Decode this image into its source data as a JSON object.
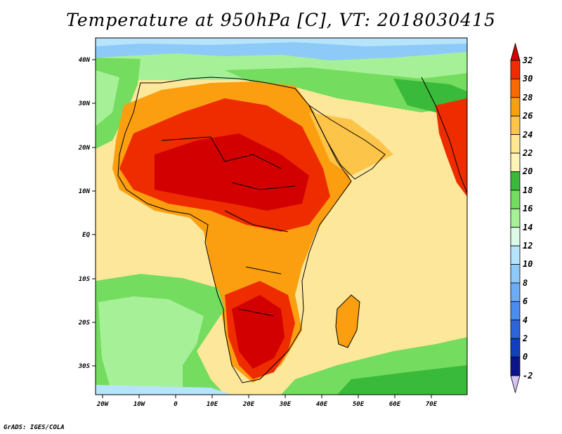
{
  "title": "Temperature at 950hPa [C], VT: 2018030415",
  "credit": "GrADS: IGES/COLA",
  "map": {
    "lon_labels": [
      "20W",
      "10W",
      "0",
      "10E",
      "20E",
      "30E",
      "40E",
      "50E",
      "60E",
      "70E"
    ],
    "lat_labels": [
      "40N",
      "30N",
      "20N",
      "10N",
      "EQ",
      "10S",
      "20S",
      "30S"
    ]
  },
  "colorbar": {
    "labels": [
      "32",
      "30",
      "28",
      "26",
      "24",
      "22",
      "20",
      "18",
      "16",
      "14",
      "12",
      "10",
      "8",
      "6",
      "4",
      "2",
      "0",
      "-2"
    ],
    "colors": [
      "#d20000",
      "#ee2c00",
      "#f66a00",
      "#fb9f10",
      "#fdc44a",
      "#ffe891",
      "#fdf4b6",
      "#3aba3a",
      "#74dc5e",
      "#a6f098",
      "#dcfae8",
      "#b6e4fc",
      "#8ecaf8",
      "#6cacf6",
      "#4a8cf0",
      "#2c64dc",
      "#1040be",
      "#0c148c",
      "#d4c4f6"
    ]
  }
}
